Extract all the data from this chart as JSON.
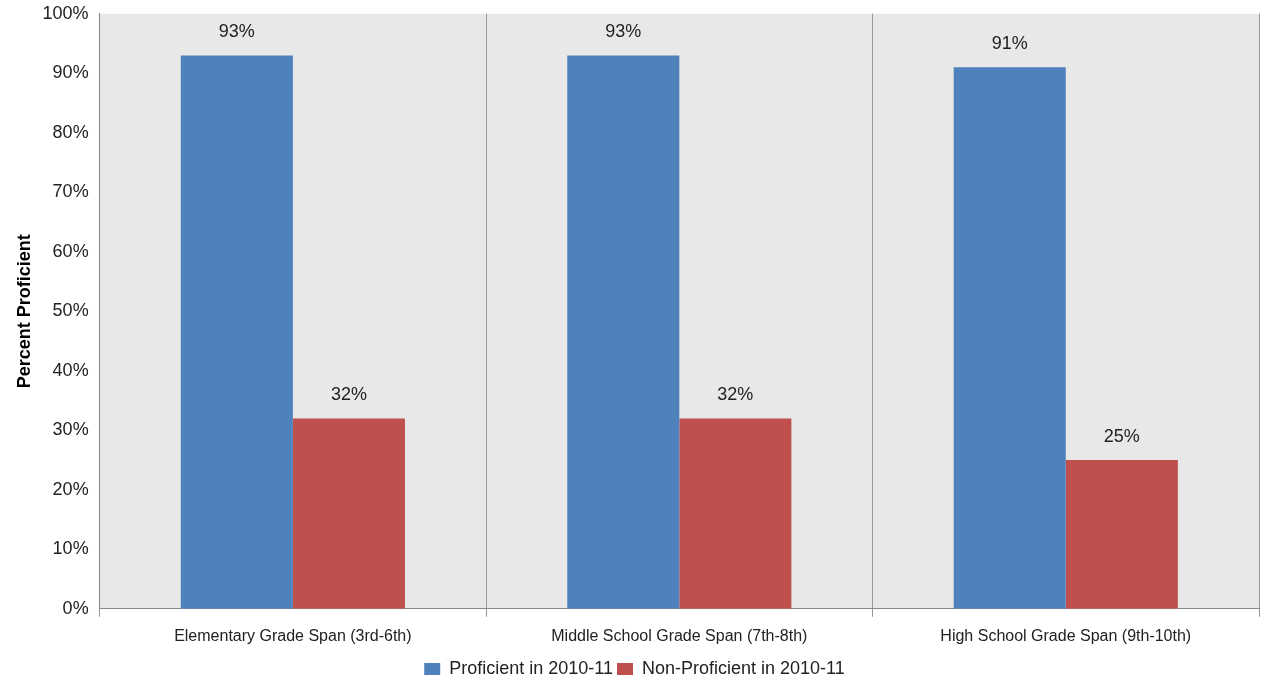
{
  "chart_data": {
    "type": "bar",
    "ylabel": "Percent Proficient",
    "categories": [
      "Elementary Grade Span (3rd-6th)",
      "Middle School Grade Span (7th-8th)",
      "High School Grade Span (9th-10th)"
    ],
    "series": [
      {
        "name": "Proficient in 2010-11",
        "color": "#4f81bd",
        "values": [
          93,
          93,
          91
        ],
        "value_labels": [
          "93%",
          "93%",
          "91%"
        ]
      },
      {
        "name": "Non-Proficient in 2010-11",
        "color": "#c0504d",
        "values": [
          32,
          32,
          25
        ],
        "value_labels": [
          "32%",
          "32%",
          "25%"
        ]
      }
    ],
    "ylim": [
      0,
      100
    ],
    "yticks": [
      {
        "value": 0,
        "label": "0%"
      },
      {
        "value": 10,
        "label": "10%"
      },
      {
        "value": 20,
        "label": "20%"
      },
      {
        "value": 30,
        "label": "30%"
      },
      {
        "value": 40,
        "label": "40%"
      },
      {
        "value": 50,
        "label": "50%"
      },
      {
        "value": 60,
        "label": "60%"
      },
      {
        "value": 70,
        "label": "70%"
      },
      {
        "value": 80,
        "label": "80%"
      },
      {
        "value": 90,
        "label": "90%"
      },
      {
        "value": 100,
        "label": "100%"
      }
    ],
    "grid": "x",
    "legend": "bottom"
  }
}
